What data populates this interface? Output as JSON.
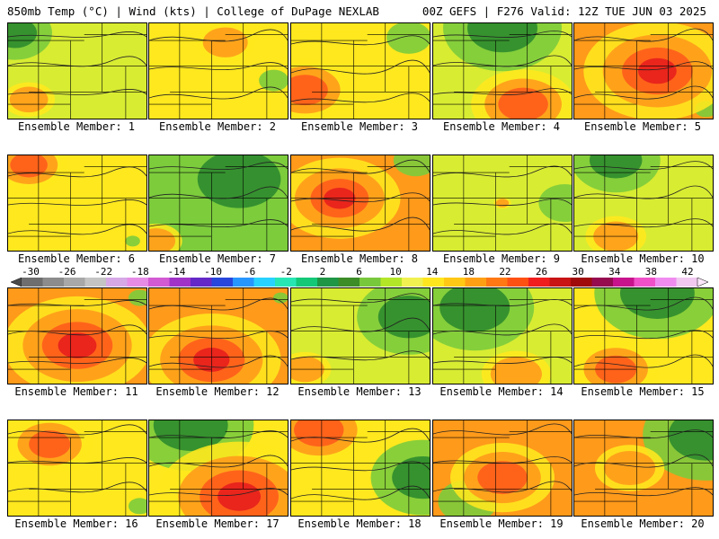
{
  "header": {
    "left": "850mb Temp (°C) | Wind (kts) | College of DuPage NEXLAB",
    "right": "00Z GEFS | F276 Valid: 12Z TUE JUN 03 2025"
  },
  "members": [
    {
      "label": "Ensemble Member: 1",
      "temp": 13,
      "hot": 0.3,
      "hotx": 0.15,
      "hoty": 0.8,
      "cool": 0.5,
      "coolx": 0.05,
      "cooly": 0.1
    },
    {
      "label": "Ensemble Member: 2",
      "temp": 15,
      "hot": 0.35,
      "hotx": 0.55,
      "hoty": 0.2,
      "cool": 0.2,
      "coolx": 0.9,
      "cooly": 0.6
    },
    {
      "label": "Ensemble Member: 3",
      "temp": 15,
      "hot": 0.55,
      "hotx": 0.1,
      "hoty": 0.7,
      "cool": 0.3,
      "coolx": 0.85,
      "cooly": 0.15
    },
    {
      "label": "Ensemble Member: 4",
      "temp": 13,
      "hot": 0.6,
      "hotx": 0.65,
      "hoty": 0.85,
      "cool": 0.8,
      "coolx": 0.5,
      "cooly": 0.05
    },
    {
      "label": "Ensemble Member: 5",
      "temp": 17,
      "hot": 0.85,
      "hotx": 0.6,
      "hoty": 0.5,
      "cool": 0.15,
      "coolx": 0.95,
      "cooly": 0.9
    },
    {
      "label": "Ensemble Member: 6",
      "temp": 14,
      "hot": 0.45,
      "hotx": 0.15,
      "hoty": 0.1,
      "cool": 0.1,
      "coolx": 0.9,
      "cooly": 0.9
    },
    {
      "label": "Ensemble Member: 7",
      "temp": 11,
      "hot": 0.3,
      "hotx": 0.05,
      "hoty": 0.9,
      "cool": 0.95,
      "coolx": 0.65,
      "cooly": 0.25
    },
    {
      "label": "Ensemble Member: 8",
      "temp": 16,
      "hot": 0.7,
      "hotx": 0.35,
      "hoty": 0.45,
      "cool": 0.3,
      "coolx": 0.9,
      "cooly": 0.05
    },
    {
      "label": "Ensemble Member: 9",
      "temp": 13,
      "hot": 0.1,
      "hotx": 0.5,
      "hoty": 0.5,
      "cool": 0.35,
      "coolx": 0.95,
      "cooly": 0.5
    },
    {
      "label": "Ensemble Member: 10",
      "temp": 13,
      "hot": 0.35,
      "hotx": 0.3,
      "hoty": 0.85,
      "cool": 0.6,
      "coolx": 0.3,
      "cooly": 0.05
    },
    {
      "label": "Ensemble Member: 11",
      "temp": 17,
      "hot": 0.85,
      "hotx": 0.5,
      "hoty": 0.6,
      "cool": 0.15,
      "coolx": 0.95,
      "cooly": 0.1
    },
    {
      "label": "Ensemble Member: 12",
      "temp": 16,
      "hot": 0.8,
      "hotx": 0.45,
      "hoty": 0.75,
      "cool": 0.1,
      "coolx": 0.95,
      "cooly": 0.1
    },
    {
      "label": "Ensemble Member: 13",
      "temp": 13,
      "hot": 0.3,
      "hotx": 0.1,
      "hoty": 0.85,
      "cool": 0.7,
      "coolx": 0.85,
      "cooly": 0.3
    },
    {
      "label": "Ensemble Member: 14",
      "temp": 12,
      "hot": 0.4,
      "hotx": 0.6,
      "hoty": 0.9,
      "cool": 0.8,
      "coolx": 0.3,
      "cooly": 0.2
    },
    {
      "label": "Ensemble Member: 15",
      "temp": 14,
      "hot": 0.5,
      "hotx": 0.3,
      "hoty": 0.85,
      "cool": 0.85,
      "coolx": 0.6,
      "cooly": 0.05
    },
    {
      "label": "Ensemble Member: 16",
      "temp": 15,
      "hot": 0.5,
      "hotx": 0.3,
      "hoty": 0.25,
      "cool": 0.15,
      "coolx": 0.95,
      "cooly": 0.9
    },
    {
      "label": "Ensemble Member: 17",
      "temp": 14,
      "hot": 0.95,
      "hotx": 0.65,
      "hoty": 0.8,
      "cool": 0.85,
      "coolx": 0.3,
      "cooly": 0.05
    },
    {
      "label": "Ensemble Member: 18",
      "temp": 14,
      "hot": 0.6,
      "hotx": 0.2,
      "hoty": 0.1,
      "cool": 0.7,
      "coolx": 0.95,
      "cooly": 0.6
    },
    {
      "label": "Ensemble Member: 19",
      "temp": 16,
      "hot": 0.6,
      "hotx": 0.5,
      "hoty": 0.6,
      "cool": 0.4,
      "coolx": 0.25,
      "cooly": 0.85
    },
    {
      "label": "Ensemble Member: 20",
      "temp": 16,
      "hot": 0.4,
      "hotx": 0.4,
      "hoty": 0.5,
      "cool": 0.85,
      "coolx": 0.95,
      "cooly": 0.15
    }
  ],
  "colorbar": {
    "ticks": [
      "-30",
      "-26",
      "-22",
      "-18",
      "-14",
      "-10",
      "-6",
      "-2",
      "2",
      "6",
      "10",
      "14",
      "18",
      "22",
      "26",
      "30",
      "34",
      "38",
      "42"
    ],
    "colors": [
      "#6e6e6e",
      "#8c8c8c",
      "#a8a8a8",
      "#c4c4c4",
      "#d6a8e6",
      "#e68ce6",
      "#d25ad2",
      "#a032c8",
      "#6428c8",
      "#2846dc",
      "#2896ff",
      "#28d2ff",
      "#28e6b4",
      "#14c878",
      "#1e9646",
      "#3c8c28",
      "#78c83c",
      "#b4e628",
      "#f0f050",
      "#ffe61e",
      "#ffc814",
      "#ffa014",
      "#ff7814",
      "#ff5014",
      "#f01e1e",
      "#c81414",
      "#a00a0a",
      "#960a50",
      "#c8148c",
      "#f050c8",
      "#f08cf0",
      "#f0c8f0"
    ]
  },
  "colors": {
    "cold": "#2e8b2e",
    "cool": "#7ccc3c",
    "mild": "#d8ec32",
    "warm": "#ffe81e",
    "hot": "#ff9a1a",
    "very_hot": "#ff5a1a",
    "extreme": "#e61c1c"
  }
}
